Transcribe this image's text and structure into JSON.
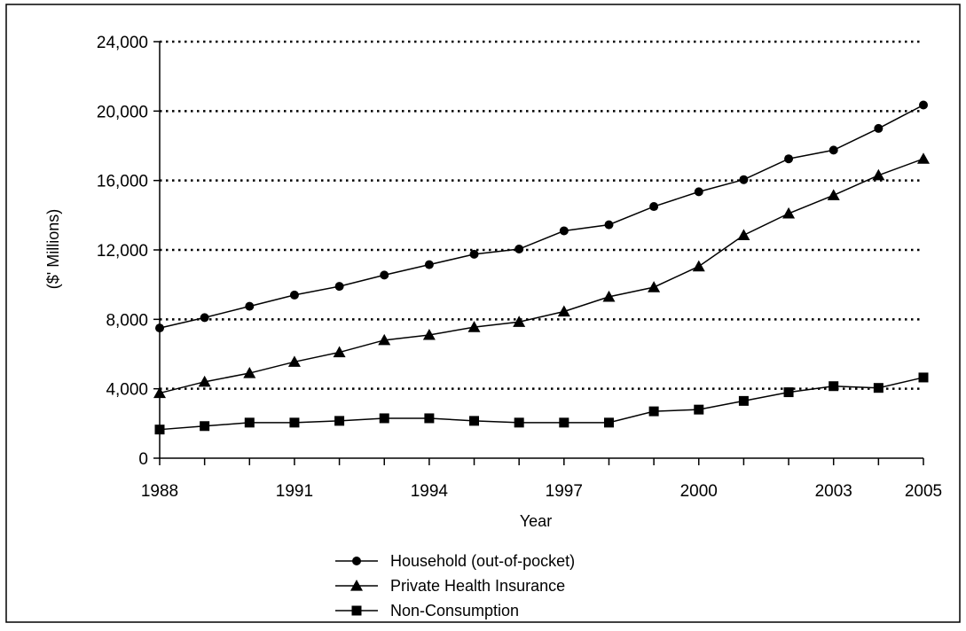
{
  "chart_data": {
    "type": "line",
    "xlabel": "Year",
    "ylabel": "($' Millions)",
    "ylim": [
      0,
      24000
    ],
    "yticks": [
      0,
      4000,
      8000,
      12000,
      16000,
      20000,
      24000
    ],
    "ytick_labels": [
      "0",
      "4,000",
      "8,000",
      "12,000",
      "16,000",
      "20,000",
      "24,000"
    ],
    "xlim": [
      1988,
      2005
    ],
    "xticks": [
      1988,
      1991,
      1994,
      1997,
      2000,
      2003,
      2005
    ],
    "xtick_labels": [
      "1988",
      "1991",
      "1994",
      "1997",
      "2000",
      "2003",
      "2005"
    ],
    "grid": "horizontal-dotted",
    "legend_position": "bottom-center",
    "x": [
      1988,
      1989,
      1990,
      1991,
      1992,
      1993,
      1994,
      1995,
      1996,
      1997,
      1998,
      1999,
      2000,
      2001,
      2002,
      2003,
      2004,
      2005
    ],
    "series": [
      {
        "name": "Household (out-of-pocket)",
        "marker": "circle",
        "values": [
          7500,
          8100,
          8750,
          9400,
          9900,
          10550,
          11150,
          11750,
          12050,
          13100,
          13450,
          14500,
          15350,
          16050,
          17250,
          17750,
          19000,
          20350
        ]
      },
      {
        "name": "Private Health Insurance",
        "marker": "triangle",
        "values": [
          3750,
          4400,
          4900,
          5550,
          6100,
          6800,
          7100,
          7550,
          7850,
          8450,
          9300,
          9850,
          11050,
          12850,
          14100,
          15150,
          16300,
          17250
        ]
      },
      {
        "name": "Non-Consumption",
        "marker": "square",
        "values": [
          1650,
          1850,
          2050,
          2050,
          2150,
          2300,
          2300,
          2150,
          2050,
          2050,
          2050,
          2700,
          2800,
          3300,
          3800,
          4150,
          4050,
          4650
        ]
      }
    ]
  }
}
